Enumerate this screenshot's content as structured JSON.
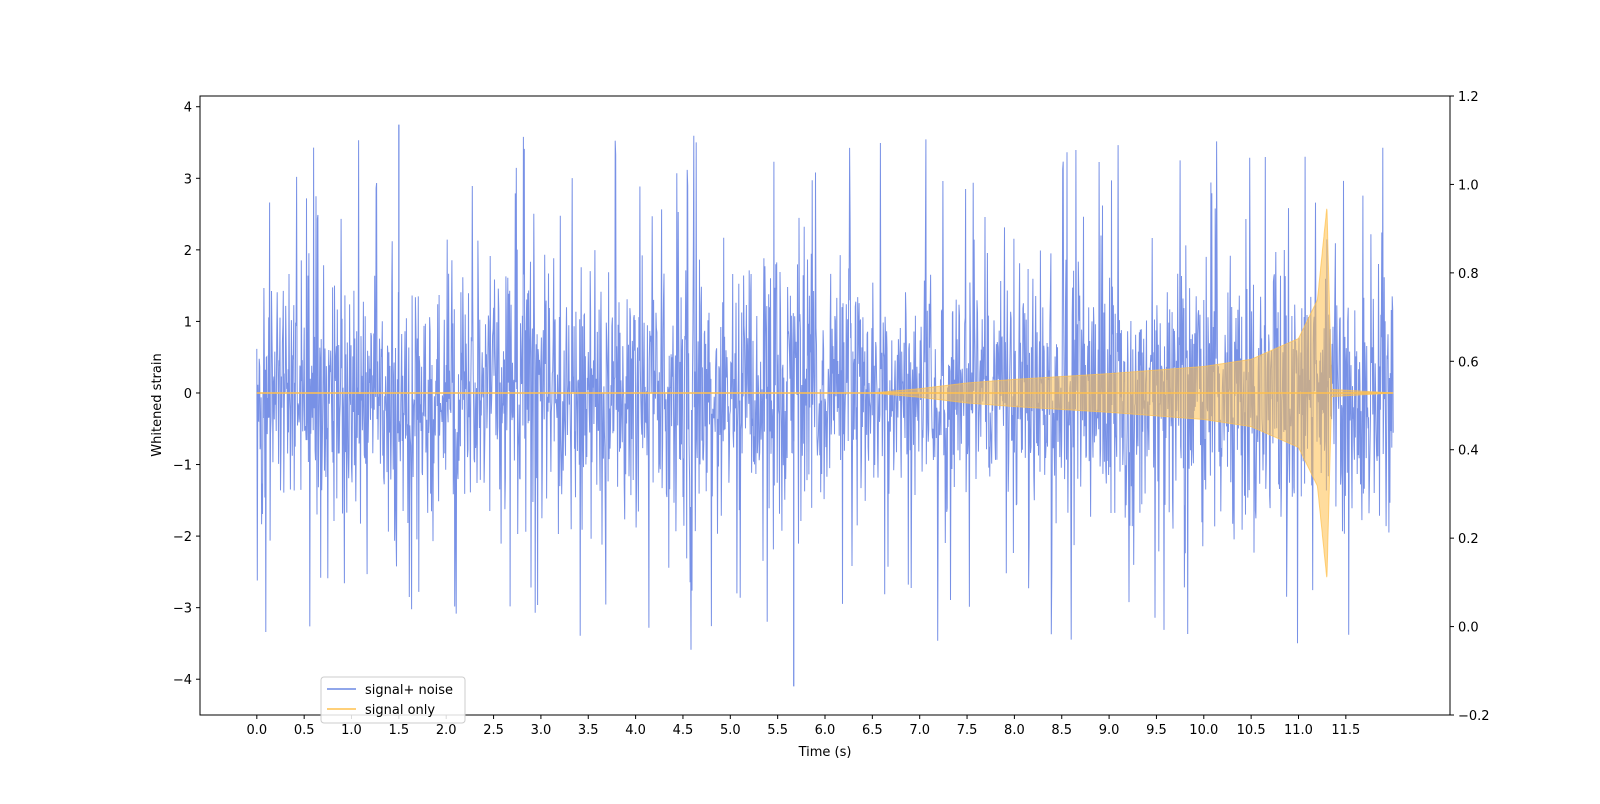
{
  "chart_data": {
    "type": "line",
    "title": "",
    "xlabel": "Time (s)",
    "ylabel": "Whitened strain",
    "xlim": [
      -0.6,
      12.6
    ],
    "ylim": [
      -4.5,
      4.15
    ],
    "y2lim": [
      -0.2,
      1.2
    ],
    "x_ticks": [
      "0.0",
      "0.5",
      "1.0",
      "1.5",
      "2.0",
      "2.5",
      "3.0",
      "3.5",
      "4.0",
      "4.5",
      "5.0",
      "5.5",
      "6.0",
      "6.5",
      "7.0",
      "7.5",
      "8.0",
      "8.5",
      "9.0",
      "9.5",
      "10.0",
      "10.5",
      "11.0",
      "11.5"
    ],
    "y_ticks": [
      "4",
      "3",
      "2",
      "1",
      "0",
      "−1",
      "−2",
      "−3",
      "−4"
    ],
    "y2_ticks": [
      "1.2",
      "1.0",
      "0.8",
      "0.6",
      "0.4",
      "0.2",
      "0.0",
      "−0.2"
    ],
    "grid": false,
    "legend_position": "lower-left",
    "series": [
      {
        "name": "signal+ noise",
        "color": "#6c88e4",
        "kind": "noisy-chirp",
        "x_range": [
          0.0,
          12.0
        ],
        "typical_amplitude": 1.8,
        "extreme_values": [
          3.75,
          -4.1
        ],
        "merger_time": 11.32
      },
      {
        "name": "signal only",
        "color": "#ffc04d",
        "kind": "chirp-envelope",
        "x_range": [
          0.0,
          12.0
        ],
        "onset_time": 6.5,
        "merger_time": 11.32,
        "peak_amplitude": 2.6,
        "envelope": [
          [
            0.0,
            0.0
          ],
          [
            6.5,
            0.0
          ],
          [
            7.0,
            0.06
          ],
          [
            7.5,
            0.14
          ],
          [
            8.0,
            0.19
          ],
          [
            9.0,
            0.27
          ],
          [
            10.0,
            0.37
          ],
          [
            10.5,
            0.47
          ],
          [
            11.0,
            0.76
          ],
          [
            11.2,
            1.3
          ],
          [
            11.3,
            2.6
          ],
          [
            11.35,
            0.05
          ],
          [
            12.0,
            0.0
          ]
        ]
      }
    ]
  }
}
